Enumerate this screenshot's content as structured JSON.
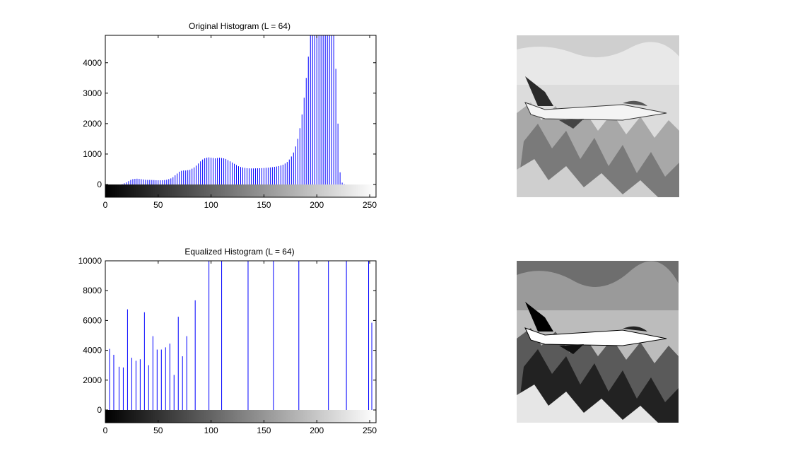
{
  "chart_data": [
    {
      "type": "bar",
      "title": "Original Histogram (L = 64)",
      "xlabel": "",
      "ylabel": "",
      "xlim": [
        0,
        256
      ],
      "ylim": [
        0,
        4900
      ],
      "xticks": [
        0,
        50,
        100,
        150,
        200,
        250
      ],
      "yticks": [
        0,
        1000,
        2000,
        3000,
        4000
      ],
      "grid": false,
      "legend": "none",
      "bar_color": "#0000ff",
      "colorbar": "grayscale 0-255",
      "x": [
        2,
        4,
        6,
        8,
        10,
        12,
        14,
        16,
        18,
        20,
        22,
        24,
        26,
        28,
        30,
        32,
        34,
        36,
        38,
        40,
        42,
        44,
        46,
        48,
        50,
        52,
        54,
        56,
        58,
        60,
        62,
        64,
        66,
        68,
        70,
        72,
        74,
        76,
        78,
        80,
        82,
        84,
        86,
        88,
        90,
        92,
        94,
        96,
        98,
        100,
        102,
        104,
        106,
        108,
        110,
        112,
        114,
        116,
        118,
        120,
        122,
        124,
        126,
        128,
        130,
        132,
        134,
        136,
        138,
        140,
        142,
        144,
        146,
        148,
        150,
        152,
        154,
        156,
        158,
        160,
        162,
        164,
        166,
        168,
        170,
        172,
        174,
        176,
        178,
        180,
        182,
        184,
        186,
        188,
        190,
        192,
        194,
        196,
        198,
        200,
        202,
        204,
        206,
        208,
        210,
        212,
        214,
        216,
        218,
        220,
        222,
        224,
        226,
        228,
        230,
        232
      ],
      "values": [
        0,
        0,
        0,
        0,
        0,
        0,
        0,
        10,
        40,
        70,
        110,
        150,
        175,
        185,
        190,
        185,
        175,
        165,
        155,
        150,
        150,
        148,
        145,
        140,
        138,
        138,
        140,
        145,
        155,
        175,
        200,
        240,
        300,
        360,
        420,
        450,
        460,
        460,
        470,
        480,
        520,
        560,
        620,
        690,
        760,
        820,
        860,
        880,
        890,
        880,
        870,
        860,
        870,
        880,
        870,
        860,
        840,
        800,
        760,
        720,
        680,
        640,
        600,
        575,
        560,
        545,
        535,
        530,
        528,
        528,
        530,
        532,
        535,
        538,
        542,
        548,
        552,
        560,
        570,
        580,
        590,
        605,
        625,
        650,
        690,
        740,
        820,
        920,
        1050,
        1250,
        1500,
        1850,
        2300,
        2850,
        3500,
        4200,
        4900,
        4900,
        4900,
        4900,
        4900,
        4900,
        4900,
        4900,
        4900,
        4900,
        4900,
        4900,
        3800,
        2000,
        400,
        60,
        10,
        0,
        0,
        0
      ]
    },
    {
      "type": "bar",
      "title": "Equalized Histogram (L = 64)",
      "xlabel": "",
      "ylabel": "",
      "xlim": [
        0,
        256
      ],
      "ylim": [
        0,
        10000
      ],
      "xticks": [
        0,
        50,
        100,
        150,
        200,
        250
      ],
      "yticks": [
        0,
        2000,
        4000,
        6000,
        8000,
        10000
      ],
      "grid": false,
      "legend": "none",
      "bar_color": "#0000ff",
      "colorbar": "grayscale 0-255",
      "x": [
        4,
        8,
        13,
        17,
        21,
        25,
        29,
        33,
        37,
        41,
        45,
        49,
        53,
        57,
        61,
        65,
        69,
        73,
        77,
        85,
        98,
        110,
        135,
        159,
        183,
        211,
        228,
        249,
        252
      ],
      "values": [
        4100,
        3700,
        2900,
        2850,
        6750,
        3500,
        3300,
        3400,
        6550,
        3000,
        4950,
        4050,
        4050,
        4200,
        4450,
        2350,
        6250,
        3600,
        4950,
        7350,
        10000,
        10000,
        10000,
        10000,
        10000,
        10000,
        10000,
        10000,
        5850
      ]
    }
  ],
  "images": [
    {
      "subject": "aircraft-over-mountains",
      "variant": "original"
    },
    {
      "subject": "aircraft-over-mountains",
      "variant": "equalized"
    }
  ]
}
